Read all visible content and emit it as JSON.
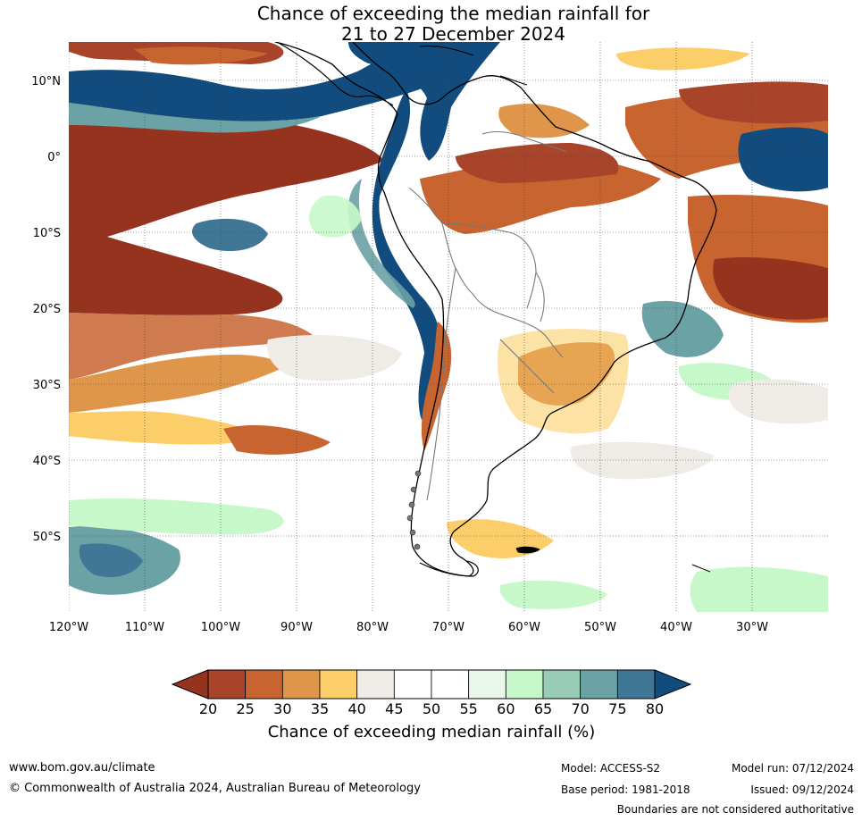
{
  "title": {
    "line1": "Chance of exceeding the median rainfall for",
    "line2": "21 to 27 December 2024"
  },
  "map": {
    "lat_labels": [
      "10°N",
      "0°",
      "10°S",
      "20°S",
      "30°S",
      "40°S",
      "50°S"
    ],
    "lon_labels": [
      "120°W",
      "110°W",
      "100°W",
      "90°W",
      "80°W",
      "70°W",
      "60°W",
      "50°W",
      "40°W",
      "30°W"
    ],
    "region": "South America and surrounding oceans",
    "colors": {
      "lt20": "#96331f",
      "20-25": "#a8442a",
      "25-30": "#c86430",
      "30-35": "#e0964a",
      "35-40": "#fcce6a",
      "40-45": "#efebe7",
      "45-55": "#ffffff",
      "55-60": "#e9f6ea",
      "60-65": "#c7f8c9",
      "65-70": "#98ccb6",
      "70-75": "#6aa2a5",
      "75-80": "#417796",
      "gt80": "#124c7e"
    }
  },
  "colorbar": {
    "ticks": [
      "20",
      "25",
      "30",
      "35",
      "40",
      "45",
      "50",
      "55",
      "60",
      "65",
      "70",
      "75",
      "80"
    ],
    "label": "Chance of exceeding median rainfall (%)",
    "colors": [
      "#a8442a",
      "#c86430",
      "#e0964a",
      "#fcce6a",
      "#efebe7",
      "#ffffff",
      "#ffffff",
      "#e9f6ea",
      "#c7f8c9",
      "#98ccb6",
      "#6aa2a5",
      "#417796"
    ],
    "under_color": "#96331f",
    "over_color": "#124c7e"
  },
  "footer": {
    "website": "www.bom.gov.au/climate",
    "copyright": "© Commonwealth of Australia 2024, Australian Bureau of Meteorology",
    "model": "Model: ACCESS-S2",
    "base_period": "Base period: 1981-2018",
    "model_run": "Model run: 07/12/2024",
    "issued": "Issued: 09/12/2024",
    "disclaimer": "Boundaries are not considered authoritative"
  }
}
